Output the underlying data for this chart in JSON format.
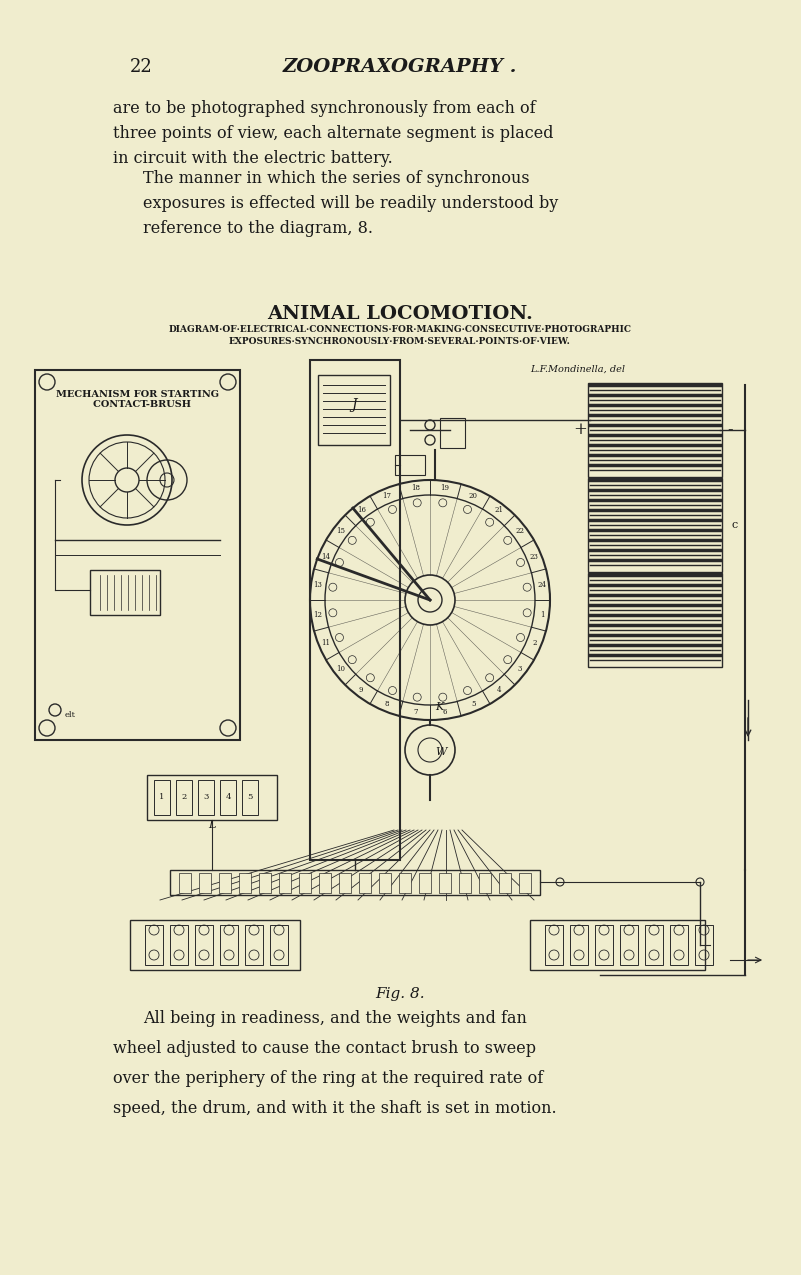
{
  "bg_color": "#f0edce",
  "page_number": "22",
  "header": "ZOOPRAXOGRAPHY .",
  "para1": "are to be photographed synchronously from each of\nthree points of view, each alternate segment is placed\nin circuit with the electric battery.",
  "para2": "The manner in which the series of synchronous\nexposures is effected will be readily understood by\nreference to the diagram, 8.",
  "diagram_title": "ANIMAL LOCOMOTION.",
  "diagram_subtitle1": "DIAGRAM·OF·ELECTRICAL·CONNECTIONS·FOR·MAKING·CONSECUTIVE·PHOTOGRAPHIC",
  "diagram_subtitle2": "EXPOSURES·SYNCHRONOUSLY·FROM·SEVERAL·POINTS·OF·VIEW.",
  "fig_label": "Fig. 8.",
  "caption1": "All being in readiness, and the weights and fan",
  "caption2": "wheel adjusted to cause the contact brush to sweep",
  "caption3": "over the periphery of the ring at the required rate of",
  "caption4": "speed, the drum, and with it the shaft is set in motion.",
  "mechanism_label": "MECHANISM FOR STARTING\n   CONTACT-BRUSH",
  "artist_credit": "L.F.Mondinella, del",
  "text_color": "#1a1a1a",
  "line_color": "#2a2a2a"
}
